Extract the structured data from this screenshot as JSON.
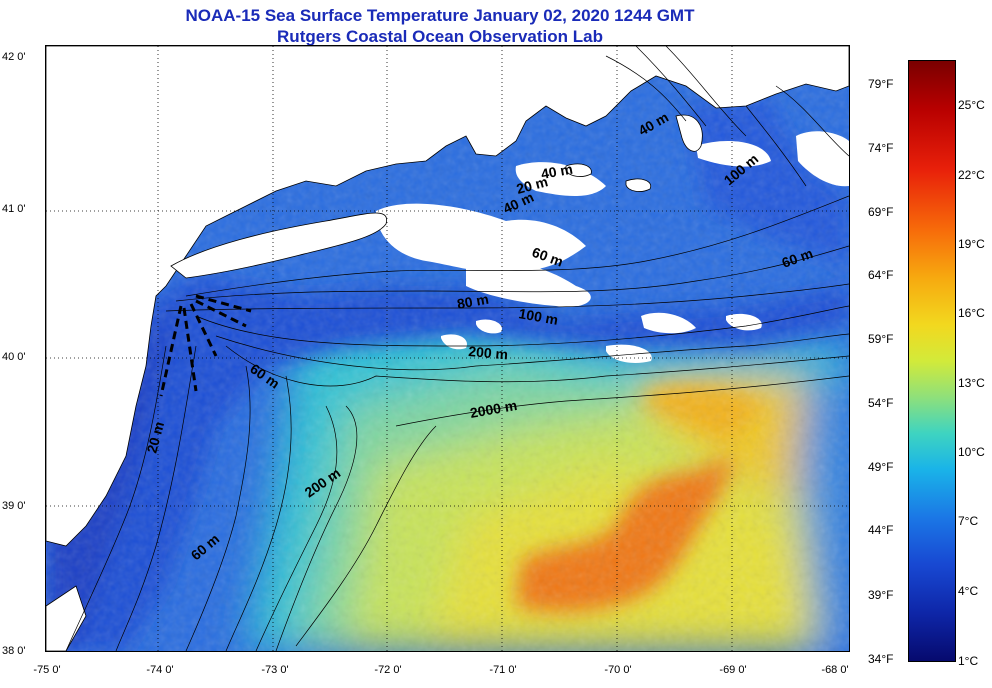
{
  "title": {
    "line1": "NOAA-15 Sea Surface Temperature January 02, 2020 1244 GMT",
    "line2": "Rutgers Coastal Ocean Observation Lab"
  },
  "axes": {
    "lat_labels": [
      "42 0'",
      "41 0'",
      "40 0'",
      "39 0'",
      "38 0'"
    ],
    "lon_labels": [
      "-75 0'",
      "-74 0'",
      "-73 0'",
      "-72 0'",
      "-71 0'",
      "-70 0'",
      "-69 0'",
      "-68 0'"
    ]
  },
  "colorbar": {
    "fahrenheit": [
      "79°F",
      "74°F",
      "69°F",
      "64°F",
      "59°F",
      "54°F",
      "49°F",
      "44°F",
      "39°F",
      "34°F"
    ],
    "celsius": [
      "25°C",
      "22°C",
      "19°C",
      "16°C",
      "13°C",
      "10°C",
      "7°C",
      "4°C",
      "1°C"
    ]
  },
  "contour_labels": [
    "40 m",
    "40 m",
    "20 m",
    "40 m",
    "60 m",
    "100 m",
    "60 m",
    "80 m",
    "100 m",
    "200 m",
    "60 m",
    "2000 m",
    "20 m",
    "200 m",
    "60 m"
  ],
  "colors": {
    "title": "#1a2bb8",
    "cold": "#1848d2",
    "cool": "#1ab4e8",
    "mild": "#8fe07a",
    "warm": "#f2d81f",
    "hot": "#f7a80f",
    "gulf_stream": "#f07818",
    "land": "#ffffff",
    "clouds": "#ffffff"
  }
}
